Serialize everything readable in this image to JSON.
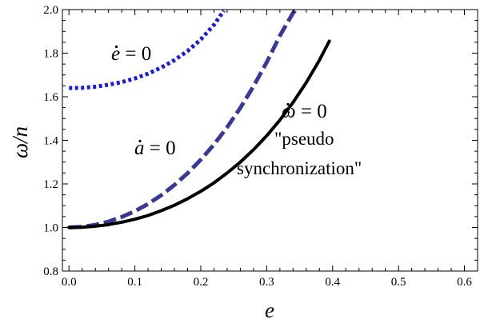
{
  "chart_data": {
    "type": "line",
    "xlabel": "e",
    "ylabel": "ω/n",
    "xlim": [
      -0.01,
      0.62
    ],
    "ylim": [
      0.8,
      2.0
    ],
    "grid": false,
    "legend": "none",
    "x_ticks": [
      "0.0",
      "0.1",
      "0.2",
      "0.3",
      "0.4",
      "0.5",
      "0.6"
    ],
    "y_ticks": [
      "0.8",
      "1.0",
      "1.2",
      "1.4",
      "1.6",
      "1.8",
      "2.0"
    ],
    "series": [
      {
        "style": "dotted",
        "color": "#1a1ae6",
        "x": [
          0.0,
          0.02,
          0.04,
          0.06,
          0.08,
          0.1,
          0.12,
          0.14,
          0.16,
          0.18,
          0.2,
          0.22,
          0.235
        ],
        "y": [
          1.64,
          1.641,
          1.646,
          1.655,
          1.667,
          1.684,
          1.706,
          1.734,
          1.768,
          1.81,
          1.863,
          1.93,
          1.995
        ]
      },
      {
        "style": "dashed",
        "color": "#383897",
        "x": [
          0.0,
          0.02,
          0.04,
          0.06,
          0.08,
          0.1,
          0.12,
          0.14,
          0.16,
          0.18,
          0.2,
          0.22,
          0.24,
          0.26,
          0.28,
          0.3,
          0.32,
          0.34,
          0.345
        ],
        "y": [
          1.0,
          1.003,
          1.012,
          1.027,
          1.048,
          1.075,
          1.108,
          1.148,
          1.195,
          1.249,
          1.311,
          1.381,
          1.46,
          1.549,
          1.648,
          1.758,
          1.88,
          1.985,
          2.0
        ]
      },
      {
        "style": "solid",
        "color": "#000000",
        "x": [
          0.0,
          0.02,
          0.04,
          0.06,
          0.08,
          0.1,
          0.12,
          0.14,
          0.16,
          0.18,
          0.2,
          0.22,
          0.24,
          0.26,
          0.28,
          0.3,
          0.32,
          0.34,
          0.36,
          0.38,
          0.395
        ],
        "y": [
          1.0,
          1.001,
          1.006,
          1.013,
          1.024,
          1.038,
          1.055,
          1.077,
          1.102,
          1.132,
          1.166,
          1.205,
          1.25,
          1.3,
          1.357,
          1.421,
          1.493,
          1.574,
          1.665,
          1.768,
          1.855
        ]
      }
    ],
    "annotations": {
      "edot": {
        "sym": "e",
        "rest": " = 0"
      },
      "adot": {
        "sym": "a",
        "rest": " = 0"
      },
      "wdot": {
        "sym": "ω",
        "rest": " = 0"
      },
      "pseudo_line1": "\"pseudo",
      "pseudo_line2": "synchronization\""
    }
  }
}
